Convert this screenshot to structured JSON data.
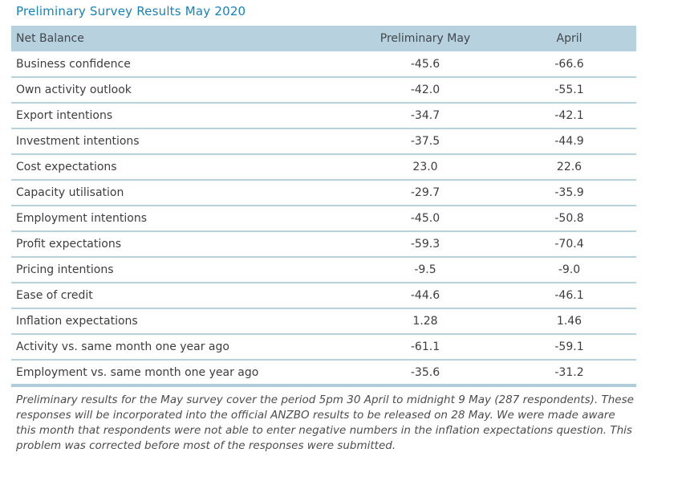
{
  "title": "Preliminary Survey Results May 2020",
  "colors": {
    "title_blue": "#1583bb",
    "header_background": "#b8d1de",
    "row_divider": "#b8d1de",
    "body_text": "#3d3d3d"
  },
  "table": {
    "columns": [
      "Net Balance",
      "Preliminary May",
      "April"
    ],
    "rows": [
      {
        "label": "Business confidence",
        "preliminary_may": "-45.6",
        "april": "-66.6"
      },
      {
        "label": "Own activity outlook",
        "preliminary_may": "-42.0",
        "april": "-55.1"
      },
      {
        "label": "Export intentions",
        "preliminary_may": "-34.7",
        "april": "-42.1"
      },
      {
        "label": "Investment intentions",
        "preliminary_may": "-37.5",
        "april": "-44.9"
      },
      {
        "label": "Cost expectations",
        "preliminary_may": "23.0",
        "april": "22.6"
      },
      {
        "label": "Capacity utilisation",
        "preliminary_may": "-29.7",
        "april": "-35.9"
      },
      {
        "label": "Employment intentions",
        "preliminary_may": "-45.0",
        "april": "-50.8"
      },
      {
        "label": "Profit expectations",
        "preliminary_may": "-59.3",
        "april": "-70.4"
      },
      {
        "label": "Pricing intentions",
        "preliminary_may": "-9.5",
        "april": "-9.0"
      },
      {
        "label": "Ease of credit",
        "preliminary_may": "-44.6",
        "april": "-46.1"
      },
      {
        "label": "Inflation expectations",
        "preliminary_may": "1.28",
        "april": "1.46"
      },
      {
        "label": "Activity vs. same month one year ago",
        "preliminary_may": "-61.1",
        "april": "-59.1"
      },
      {
        "label": "Employment vs. same month one year ago",
        "preliminary_may": "-35.6",
        "april": "-31.2"
      }
    ]
  },
  "footnote": "Preliminary results for the May survey cover the period 5pm 30 April to midnight 9 May (287 respondents). These responses will be incorporated into the official ANZBO results to be released on 28 May. We were made aware this month that respondents were not able to enter negative numbers in the inflation expectations question. This problem was corrected before most of the responses were submitted."
}
